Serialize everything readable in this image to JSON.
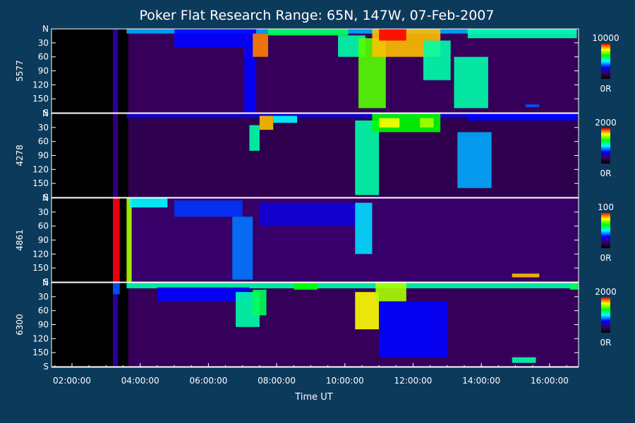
{
  "chart_data": {
    "type": "heatmap",
    "title": "Poker Flat Research Range: 65N, 147W, 07-Feb-2007",
    "xlabel": "Time UT",
    "x_ticks": [
      "02:00:00",
      "04:00:00",
      "06:00:00",
      "08:00:00",
      "10:00:00",
      "12:00:00",
      "14:00:00",
      "16:00:00"
    ],
    "x_range_hours": [
      1.4,
      16.85
    ],
    "y_ticks": [
      "N",
      "30",
      "60",
      "90",
      "120",
      "150",
      "S"
    ],
    "colorscale_colors": [
      "#000000",
      "#3a0060",
      "#0000ff",
      "#00ffff",
      "#00ff00",
      "#ffff00",
      "#ff0000"
    ],
    "panels": [
      {
        "label": "5577",
        "colorbar_max": "10000",
        "colorbar_min": "0R",
        "bg_level": 0.14,
        "features": [
          {
            "t0": 3.6,
            "t1": 16.8,
            "a0": 0,
            "a1": 10,
            "v": 0.45
          },
          {
            "t0": 5.0,
            "t1": 7.4,
            "a0": 0,
            "a1": 40,
            "v": 0.35
          },
          {
            "t0": 7.05,
            "t1": 7.4,
            "a0": 30,
            "a1": 180,
            "v": 0.35
          },
          {
            "t0": 7.3,
            "t1": 7.75,
            "a0": 10,
            "a1": 60,
            "v": 0.9
          },
          {
            "t0": 7.75,
            "t1": 10.1,
            "a0": 0,
            "a1": 14,
            "v": 0.6
          },
          {
            "t0": 9.8,
            "t1": 10.6,
            "a0": 14,
            "a1": 60,
            "v": 0.55
          },
          {
            "t0": 10.4,
            "t1": 11.2,
            "a0": 20,
            "a1": 170,
            "v": 0.7
          },
          {
            "t0": 10.8,
            "t1": 12.8,
            "a0": 0,
            "a1": 60,
            "v": 0.85
          },
          {
            "t0": 11.0,
            "t1": 11.8,
            "a0": 0,
            "a1": 25,
            "v": 1.0
          },
          {
            "t0": 12.3,
            "t1": 13.1,
            "a0": 25,
            "a1": 110,
            "v": 0.55
          },
          {
            "t0": 13.2,
            "t1": 14.2,
            "a0": 60,
            "a1": 170,
            "v": 0.55
          },
          {
            "t0": 13.6,
            "t1": 16.8,
            "a0": 0,
            "a1": 20,
            "v": 0.55
          },
          {
            "t0": 15.3,
            "t1": 15.7,
            "a0": 162,
            "a1": 168,
            "v": 0.4
          }
        ]
      },
      {
        "label": "4278",
        "colorbar_max": "2000",
        "colorbar_min": "0R",
        "bg_level": 0.12,
        "features": [
          {
            "t0": 3.6,
            "t1": 16.8,
            "a0": 0,
            "a1": 10,
            "v": 0.3
          },
          {
            "t0": 7.2,
            "t1": 7.5,
            "a0": 25,
            "a1": 80,
            "v": 0.55
          },
          {
            "t0": 7.5,
            "t1": 7.9,
            "a0": 5,
            "a1": 35,
            "v": 0.85
          },
          {
            "t0": 7.9,
            "t1": 8.6,
            "a0": 5,
            "a1": 20,
            "v": 0.5
          },
          {
            "t0": 10.3,
            "t1": 11.0,
            "a0": 15,
            "a1": 175,
            "v": 0.55
          },
          {
            "t0": 10.8,
            "t1": 12.8,
            "a0": 0,
            "a1": 40,
            "v": 0.65
          },
          {
            "t0": 11.0,
            "t1": 11.6,
            "a0": 10,
            "a1": 30,
            "v": 0.8
          },
          {
            "t0": 12.2,
            "t1": 12.6,
            "a0": 10,
            "a1": 30,
            "v": 0.75
          },
          {
            "t0": 13.3,
            "t1": 14.3,
            "a0": 40,
            "a1": 160,
            "v": 0.45
          },
          {
            "t0": 13.6,
            "t1": 16.8,
            "a0": 0,
            "a1": 15,
            "v": 0.35
          }
        ]
      },
      {
        "label": "4861",
        "colorbar_max": "100",
        "colorbar_min": "0R",
        "bg_level": 0.16,
        "features": [
          {
            "t0": 3.2,
            "t1": 3.4,
            "a0": 0,
            "a1": 180,
            "v": 1.0
          },
          {
            "t0": 3.6,
            "t1": 3.75,
            "a0": 0,
            "a1": 180,
            "v": 0.75
          },
          {
            "t0": 3.7,
            "t1": 4.8,
            "a0": 0,
            "a1": 20,
            "v": 0.5
          },
          {
            "t0": 5.0,
            "t1": 7.0,
            "a0": 5,
            "a1": 40,
            "v": 0.38
          },
          {
            "t0": 6.7,
            "t1": 7.3,
            "a0": 40,
            "a1": 175,
            "v": 0.42
          },
          {
            "t0": 7.5,
            "t1": 10.4,
            "a0": 10,
            "a1": 60,
            "v": 0.3
          },
          {
            "t0": 10.3,
            "t1": 10.8,
            "a0": 10,
            "a1": 120,
            "v": 0.48
          },
          {
            "t0": 14.9,
            "t1": 15.7,
            "a0": 162,
            "a1": 170,
            "v": 0.85
          }
        ]
      },
      {
        "label": "6300",
        "colorbar_max": "2000",
        "colorbar_min": "0R",
        "bg_level": 0.14,
        "features": [
          {
            "t0": 3.2,
            "t1": 3.4,
            "a0": 0,
            "a1": 25,
            "v": 0.4
          },
          {
            "t0": 3.6,
            "t1": 16.8,
            "a0": 0,
            "a1": 12,
            "v": 0.55
          },
          {
            "t0": 4.5,
            "t1": 7.2,
            "a0": 10,
            "a1": 40,
            "v": 0.35
          },
          {
            "t0": 6.8,
            "t1": 7.5,
            "a0": 20,
            "a1": 95,
            "v": 0.55
          },
          {
            "t0": 7.3,
            "t1": 7.7,
            "a0": 15,
            "a1": 70,
            "v": 0.6
          },
          {
            "t0": 8.5,
            "t1": 9.2,
            "a0": 0,
            "a1": 15,
            "v": 0.65
          },
          {
            "t0": 10.3,
            "t1": 11.0,
            "a0": 20,
            "a1": 100,
            "v": 0.8
          },
          {
            "t0": 10.9,
            "t1": 11.8,
            "a0": 0,
            "a1": 40,
            "v": 0.75
          },
          {
            "t0": 11.0,
            "t1": 13.0,
            "a0": 40,
            "a1": 160,
            "v": 0.35
          },
          {
            "t0": 16.6,
            "t1": 16.85,
            "a0": 0,
            "a1": 15,
            "v": 0.6
          },
          {
            "t0": 14.9,
            "t1": 15.6,
            "a0": 160,
            "a1": 172,
            "v": 0.55
          }
        ]
      }
    ]
  }
}
